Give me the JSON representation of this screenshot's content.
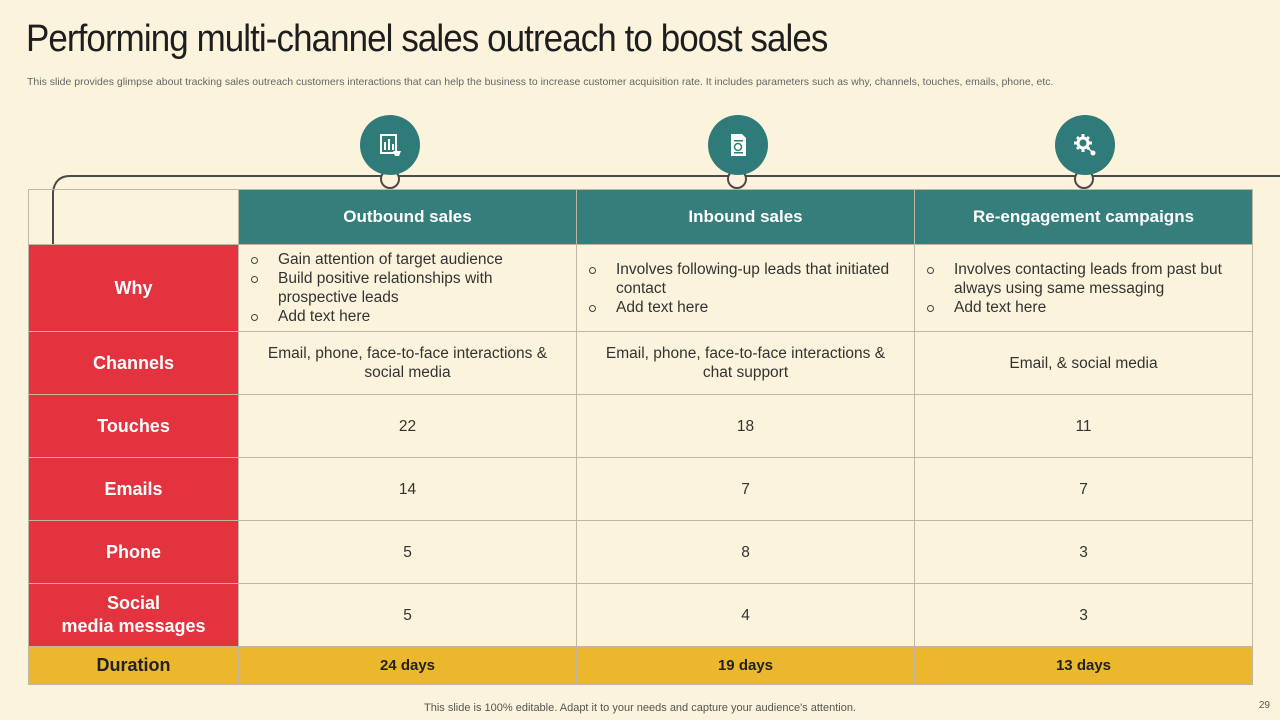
{
  "title": "Performing multi-channel sales outreach to boost sales",
  "subtitle": "This slide provides glimpse about tracking sales outreach customers interactions that can help the business to increase customer acquisition rate. It includes parameters such as why, channels, touches, emails, phone, etc.",
  "icons": [
    "sales-report-icon",
    "document-chart-icon",
    "gear-network-icon"
  ],
  "columns": [
    "Outbound sales",
    "Inbound sales",
    "Re-engagement campaigns"
  ],
  "rows": {
    "why": {
      "label": "Why",
      "cells": [
        [
          "Gain attention of target audience",
          "Build positive relationships with prospective leads",
          "Add text here"
        ],
        [
          "Involves following-up leads that initiated contact",
          "Add text here"
        ],
        [
          "Involves contacting leads from past but always using same messaging",
          "Add text here"
        ]
      ]
    },
    "channels": {
      "label": "Channels",
      "cells": [
        "Email, phone, face-to-face interactions & social media",
        "Email, phone, face-to-face interactions & chat support",
        "Email, & social media"
      ]
    },
    "touches": {
      "label": "Touches",
      "cells": [
        "22",
        "18",
        "11"
      ]
    },
    "emails": {
      "label": "Emails",
      "cells": [
        "14",
        "7",
        "7"
      ]
    },
    "phone": {
      "label": "Phone",
      "cells": [
        "5",
        "8",
        "3"
      ]
    },
    "social": {
      "label": "Social\nmedia messages",
      "cells": [
        "5",
        "4",
        "3"
      ]
    },
    "duration": {
      "label": "Duration",
      "cells": [
        "24 days",
        "19 days",
        "13 days"
      ]
    }
  },
  "footer": "This slide is 100% editable. Adapt it to your needs and capture your audience's attention.",
  "page_number": "29",
  "colors": {
    "background": "#fbf3dc",
    "header_teal": "#357e7c",
    "row_red": "#e2333f",
    "duration_yellow": "#ebb72d"
  }
}
